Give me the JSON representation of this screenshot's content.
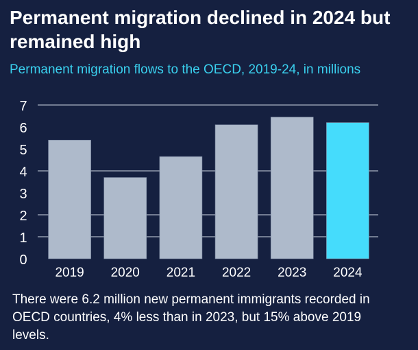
{
  "title": "Permanent migration declined in 2024 but remained high",
  "subtitle": "Permanent migration flows to the OECD, 2019-24, in millions",
  "note": "There were 6.2 million new permanent immigrants recorded in OECD countries, 4% less than in 2023, but 15% above 2019 levels.",
  "chart_data": {
    "type": "bar",
    "title": "Permanent migration declined in 2024 but remained high",
    "subtitle": "Permanent migration flows to the OECD, 2019-24, in millions",
    "xlabel": "",
    "ylabel": "",
    "categories": [
      "2019",
      "2020",
      "2021",
      "2022",
      "2023",
      "2024"
    ],
    "values": [
      5.4,
      3.7,
      4.65,
      6.1,
      6.45,
      6.2
    ],
    "ylim": [
      0,
      7
    ],
    "yticks": [
      "0",
      "1",
      "2",
      "3",
      "4",
      "5",
      "6",
      "7"
    ],
    "gridlines": [
      1,
      2,
      4,
      7
    ],
    "bar_color": "#aebacb",
    "highlight_color": "#45dcfc",
    "highlight_category": "2024",
    "legend": "none"
  }
}
